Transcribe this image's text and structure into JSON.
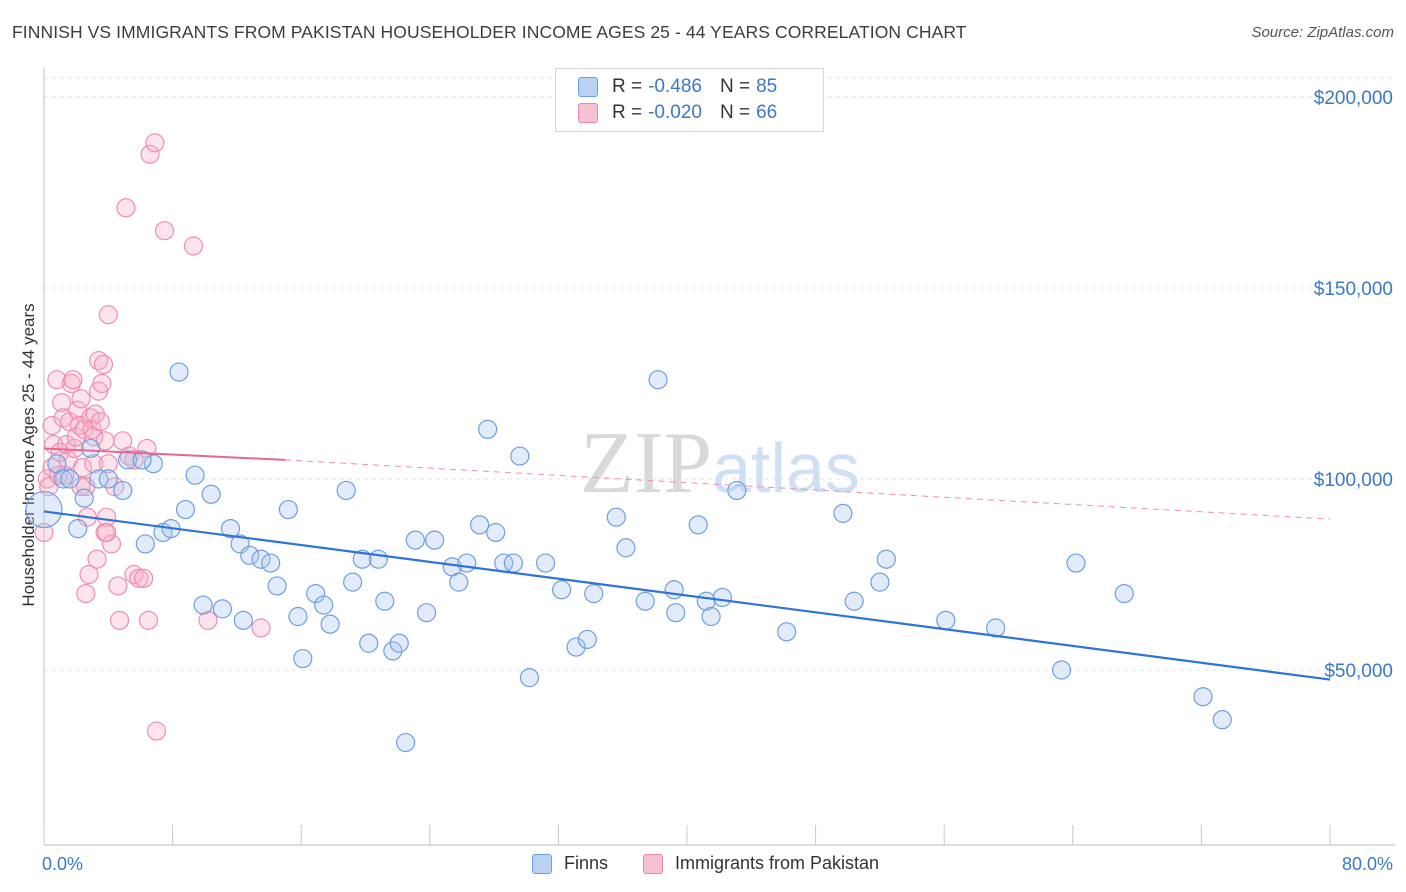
{
  "title": "FINNISH VS IMMIGRANTS FROM PAKISTAN HOUSEHOLDER INCOME AGES 25 - 44 YEARS CORRELATION CHART",
  "source": "Source: ZipAtlas.com",
  "watermark": {
    "zip": "ZIP",
    "atlas": "atlas"
  },
  "legend": {
    "finns": {
      "r_label": "R =",
      "r_value": "-0.486",
      "n_label": "N =",
      "n_value": "85",
      "color": "#6fa0e6",
      "fill": "#b9d2f4"
    },
    "pakistan": {
      "r_label": "R =",
      "r_value": "-0.020",
      "n_label": "N =",
      "n_value": "66",
      "color": "#ef86a8",
      "fill": "#f8c1d3"
    }
  },
  "bottom_legend": {
    "finns": "Finns",
    "pakistan": "Immigrants from Pakistan"
  },
  "chart_data": {
    "type": "scatter",
    "title": "FINNISH VS IMMIGRANTS FROM PAKISTAN HOUSEHOLDER INCOME AGES 25 - 44 YEARS CORRELATION CHART",
    "xlabel": "",
    "ylabel": "Householder Income Ages 25 - 44 years",
    "xlim": [
      0,
      80
    ],
    "ylim": [
      5000,
      205000
    ],
    "x_tick_labels": [
      "0.0%",
      "80.0%"
    ],
    "y_ticks": [
      50000,
      100000,
      150000,
      200000
    ],
    "y_tick_labels": [
      "$50,000",
      "$100,000",
      "$150,000",
      "$200,000"
    ],
    "grid": true,
    "legend_position": "top-center",
    "series": [
      {
        "name": "Finns",
        "color": "#3b7dd8",
        "r": -0.486,
        "n": 85,
        "trend": {
          "x": [
            0,
            80
          ],
          "y": [
            91500,
            47500
          ],
          "dashed": false
        },
        "points": [
          [
            0.0,
            92000
          ],
          [
            0.8,
            104000
          ],
          [
            1.2,
            100000
          ],
          [
            1.6,
            100000
          ],
          [
            2.1,
            87000
          ],
          [
            2.5,
            95000
          ],
          [
            3.4,
            100000
          ],
          [
            4.0,
            100000
          ],
          [
            4.9,
            97000
          ],
          [
            5.2,
            105000
          ],
          [
            6.3,
            83000
          ],
          [
            6.8,
            104000
          ],
          [
            7.4,
            86000
          ],
          [
            7.9,
            87000
          ],
          [
            8.4,
            128000
          ],
          [
            8.8,
            92000
          ],
          [
            9.4,
            101000
          ],
          [
            9.9,
            67000
          ],
          [
            10.4,
            96000
          ],
          [
            11.1,
            66000
          ],
          [
            11.6,
            87000
          ],
          [
            12.2,
            83000
          ],
          [
            12.4,
            63000
          ],
          [
            12.8,
            80000
          ],
          [
            13.5,
            79000
          ],
          [
            14.1,
            78000
          ],
          [
            14.5,
            72000
          ],
          [
            15.2,
            92000
          ],
          [
            15.8,
            64000
          ],
          [
            16.1,
            53000
          ],
          [
            16.9,
            70000
          ],
          [
            17.4,
            67000
          ],
          [
            17.8,
            62000
          ],
          [
            18.8,
            97000
          ],
          [
            19.2,
            73000
          ],
          [
            19.8,
            79000
          ],
          [
            20.2,
            57000
          ],
          [
            20.8,
            79000
          ],
          [
            21.2,
            68000
          ],
          [
            21.7,
            55000
          ],
          [
            22.1,
            57000
          ],
          [
            22.5,
            31000
          ],
          [
            23.1,
            84000
          ],
          [
            23.8,
            65000
          ],
          [
            24.3,
            84000
          ],
          [
            25.4,
            77000
          ],
          [
            25.8,
            73000
          ],
          [
            26.3,
            78000
          ],
          [
            27.1,
            88000
          ],
          [
            27.6,
            113000
          ],
          [
            28.1,
            86000
          ],
          [
            28.6,
            78000
          ],
          [
            29.2,
            78000
          ],
          [
            29.6,
            106000
          ],
          [
            30.2,
            48000
          ],
          [
            31.2,
            78000
          ],
          [
            32.2,
            71000
          ],
          [
            33.1,
            56000
          ],
          [
            33.8,
            58000
          ],
          [
            34.2,
            70000
          ],
          [
            35.6,
            90000
          ],
          [
            36.2,
            82000
          ],
          [
            38.2,
            126000
          ],
          [
            39.2,
            71000
          ],
          [
            39.3,
            65000
          ],
          [
            37.4,
            68000
          ],
          [
            40.7,
            88000
          ],
          [
            41.2,
            68000
          ],
          [
            42.2,
            69000
          ],
          [
            43.1,
            97000
          ],
          [
            46.2,
            60000
          ],
          [
            49.7,
            91000
          ],
          [
            50.4,
            68000
          ],
          [
            52.0,
            73000
          ],
          [
            52.4,
            79000
          ],
          [
            56.1,
            63000
          ],
          [
            59.2,
            61000
          ],
          [
            63.3,
            50000
          ],
          [
            64.2,
            78000
          ],
          [
            67.2,
            70000
          ],
          [
            72.1,
            43000
          ],
          [
            73.3,
            37000
          ],
          [
            6.1,
            105000
          ],
          [
            2.9,
            108000
          ],
          [
            41.5,
            64000
          ]
        ]
      },
      {
        "name": "Immigrants from Pakistan",
        "color": "#ec7ea2",
        "r": -0.02,
        "n": 66,
        "trend": {
          "x": [
            0,
            15
          ],
          "y": [
            108000,
            105000
          ],
          "dashed": false,
          "extension": {
            "x": [
              15,
              80
            ],
            "y": [
              105000,
              89500
            ],
            "dashed": true
          }
        },
        "points": [
          [
            0.0,
            86000
          ],
          [
            0.2,
            100000
          ],
          [
            0.3,
            98000
          ],
          [
            0.5,
            103000
          ],
          [
            0.5,
            114000
          ],
          [
            0.6,
            109000
          ],
          [
            0.8,
            126000
          ],
          [
            0.9,
            101000
          ],
          [
            1.0,
            107000
          ],
          [
            1.1,
            120000
          ],
          [
            1.2,
            116000
          ],
          [
            1.4,
            109000
          ],
          [
            1.5,
            105000
          ],
          [
            1.6,
            115000
          ],
          [
            1.7,
            125000
          ],
          [
            1.8,
            126000
          ],
          [
            1.9,
            108000
          ],
          [
            2.0,
            111000
          ],
          [
            2.1,
            118000
          ],
          [
            2.2,
            114000
          ],
          [
            2.3,
            121000
          ],
          [
            2.4,
            103000
          ],
          [
            2.5,
            113000
          ],
          [
            2.6,
            70000
          ],
          [
            2.6,
            98000
          ],
          [
            2.7,
            90000
          ],
          [
            2.8,
            75000
          ],
          [
            2.9,
            116000
          ],
          [
            3.0,
            113000
          ],
          [
            3.1,
            104000
          ],
          [
            3.1,
            111000
          ],
          [
            3.2,
            117000
          ],
          [
            3.3,
            79000
          ],
          [
            3.4,
            131000
          ],
          [
            3.4,
            123000
          ],
          [
            3.5,
            115000
          ],
          [
            3.6,
            125000
          ],
          [
            3.7,
            130000
          ],
          [
            3.8,
            86000
          ],
          [
            3.8,
            110000
          ],
          [
            3.9,
            90000
          ],
          [
            4.0,
            143000
          ],
          [
            4.0,
            104000
          ],
          [
            4.2,
            83000
          ],
          [
            4.4,
            98000
          ],
          [
            4.6,
            72000
          ],
          [
            4.7,
            63000
          ],
          [
            4.9,
            110000
          ],
          [
            5.1,
            171000
          ],
          [
            5.3,
            106000
          ],
          [
            5.6,
            75000
          ],
          [
            5.9,
            74000
          ],
          [
            6.2,
            74000
          ],
          [
            6.4,
            108000
          ],
          [
            6.6,
            185000
          ],
          [
            6.9,
            188000
          ],
          [
            7.5,
            165000
          ],
          [
            9.3,
            161000
          ],
          [
            10.2,
            63000
          ],
          [
            5.6,
            105000
          ],
          [
            6.5,
            63000
          ],
          [
            7.0,
            34000
          ],
          [
            13.5,
            61000
          ],
          [
            2.3,
            98000
          ],
          [
            1.3,
            101000
          ],
          [
            3.9,
            86000
          ]
        ]
      }
    ]
  }
}
